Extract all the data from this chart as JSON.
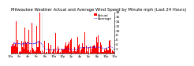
{
  "title": "Milwaukee Weather Actual and Average Wind Speed by Minute mph (Last 24 Hours)",
  "title_fontsize": 3.8,
  "background_color": "#ffffff",
  "bar_color": "#ff0000",
  "line_color": "#0000ff",
  "vline_color": "#aaaaaa",
  "ylim": [
    0,
    18
  ],
  "yticks": [
    2,
    4,
    6,
    8,
    10,
    12,
    14,
    16,
    18
  ],
  "ytick_fontsize": 3.2,
  "xtick_fontsize": 2.8,
  "n_points": 1440,
  "vline_pos": 430,
  "xtick_labels": [
    "12a",
    "2a",
    "4a",
    "6a",
    "8a",
    "10a",
    "12p",
    "2p",
    "4p",
    "6p",
    "8p",
    "10p",
    "12a"
  ],
  "legend_labels": [
    "Actual",
    "Average"
  ],
  "legend_fontsize": 3.2
}
